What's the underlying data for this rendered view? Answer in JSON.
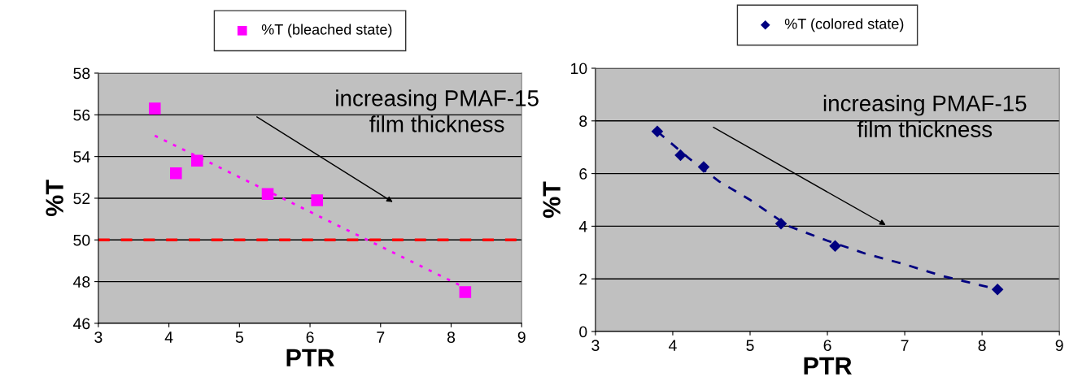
{
  "chart_data": [
    {
      "type": "scatter",
      "xlabel": "PTR",
      "ylabel": "%T",
      "xlim": [
        3,
        9
      ],
      "xticks": [
        3,
        4,
        5,
        6,
        7,
        8,
        9
      ],
      "ylim": [
        46,
        58
      ],
      "yticks": [
        46,
        48,
        50,
        52,
        54,
        56,
        58
      ],
      "grid": "y",
      "legend": "top",
      "annotations": [
        "increasing PMAF-15\nfilm thickness"
      ],
      "ref_lines": [
        {
          "axis": "y",
          "value": 50,
          "color": "#ff0000",
          "line_style": "dashed"
        }
      ],
      "series": [
        {
          "name": "%T (bleached state)",
          "color": "#ff00ff",
          "marker": "square",
          "x": [
            3.8,
            4.1,
            4.4,
            5.4,
            6.1,
            8.2
          ],
          "values": [
            56.3,
            53.2,
            53.8,
            52.2,
            51.9,
            47.5
          ]
        },
        {
          "type": "line",
          "color": "#ff00ff",
          "line_style": "dotted",
          "x": [
            3.8,
            8.2
          ],
          "values": [
            55.0,
            47.7
          ]
        }
      ]
    },
    {
      "type": "scatter",
      "xlabel": "PTR",
      "ylabel": "%T",
      "xlim": [
        3,
        9
      ],
      "xticks": [
        3,
        4,
        5,
        6,
        7,
        8,
        9
      ],
      "ylim": [
        0,
        10
      ],
      "yticks": [
        0,
        2,
        4,
        6,
        8,
        10
      ],
      "grid": "y",
      "legend": "top",
      "annotations": [
        "increasing PMAF-15\nfilm thickness"
      ],
      "series": [
        {
          "name": "%T (colored state)",
          "color": "#000080",
          "marker": "diamond",
          "x": [
            3.8,
            4.1,
            4.4,
            5.4,
            6.1,
            8.2
          ],
          "values": [
            7.6,
            6.7,
            6.25,
            4.1,
            3.25,
            1.6
          ]
        },
        {
          "type": "line",
          "color": "#000080",
          "line_style": "dashed",
          "x": [
            3.8,
            4.2,
            4.6,
            5.0,
            5.5,
            6.0,
            6.5,
            7.0,
            7.5,
            8.2
          ],
          "values": [
            7.6,
            6.6,
            5.7,
            5.0,
            4.0,
            3.45,
            2.95,
            2.55,
            2.1,
            1.6
          ]
        }
      ]
    }
  ]
}
